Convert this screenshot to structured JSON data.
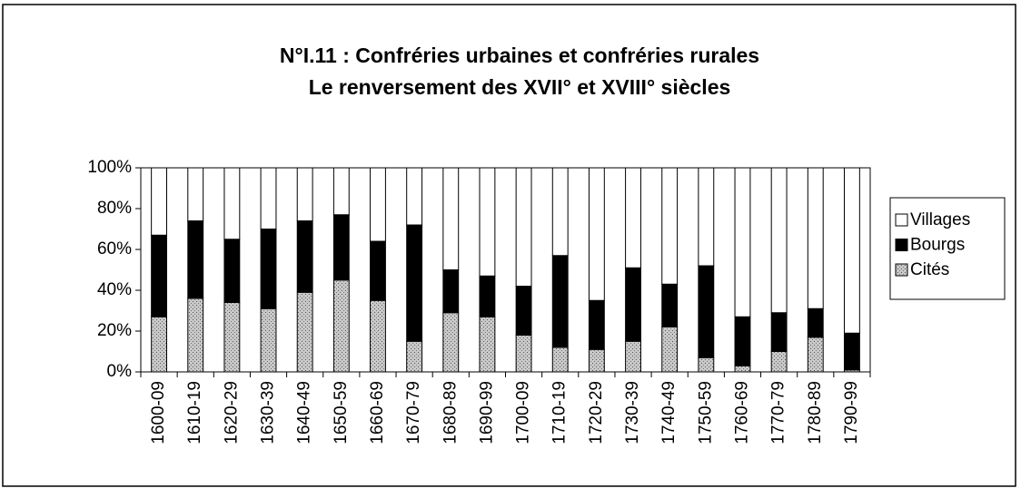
{
  "chart_data": {
    "type": "stacked_bar_100",
    "title": "N°I.11 : Confréries urbaines et confréries rurales",
    "subtitle": "Le renversement des XVII° et XVIII° siècles",
    "categories": [
      "1600-09",
      "1610-19",
      "1620-29",
      "1630-39",
      "1640-49",
      "1650-59",
      "1660-69",
      "1670-79",
      "1680-89",
      "1690-99",
      "1700-09",
      "1710-19",
      "1720-29",
      "1730-39",
      "1740-49",
      "1750-59",
      "1760-69",
      "1770-79",
      "1780-89",
      "1790-99"
    ],
    "series": [
      {
        "name": "Cités",
        "color": "#a0a0a0",
        "values": [
          27,
          36,
          34,
          31,
          39,
          45,
          35,
          15,
          29,
          27,
          18,
          12,
          11,
          15,
          22,
          7,
          3,
          10,
          17,
          1
        ]
      },
      {
        "name": "Bourgs",
        "color": "#000000",
        "values": [
          40,
          38,
          31,
          39,
          35,
          32,
          29,
          57,
          21,
          20,
          24,
          45,
          24,
          36,
          21,
          45,
          24,
          19,
          14,
          18
        ]
      },
      {
        "name": "Villages",
        "color": "#ffffff",
        "values": [
          33,
          26,
          35,
          30,
          26,
          23,
          36,
          28,
          50,
          53,
          58,
          43,
          65,
          49,
          57,
          48,
          73,
          71,
          69,
          81
        ]
      }
    ],
    "ylim": [
      0,
      100
    ],
    "yticks": [
      {
        "value": 0,
        "label": "0%"
      },
      {
        "value": 20,
        "label": "20%"
      },
      {
        "value": 40,
        "label": "40%"
      },
      {
        "value": 60,
        "label": "60%"
      },
      {
        "value": 80,
        "label": "80%"
      },
      {
        "value": 100,
        "label": "100%"
      }
    ],
    "legend": "right"
  }
}
